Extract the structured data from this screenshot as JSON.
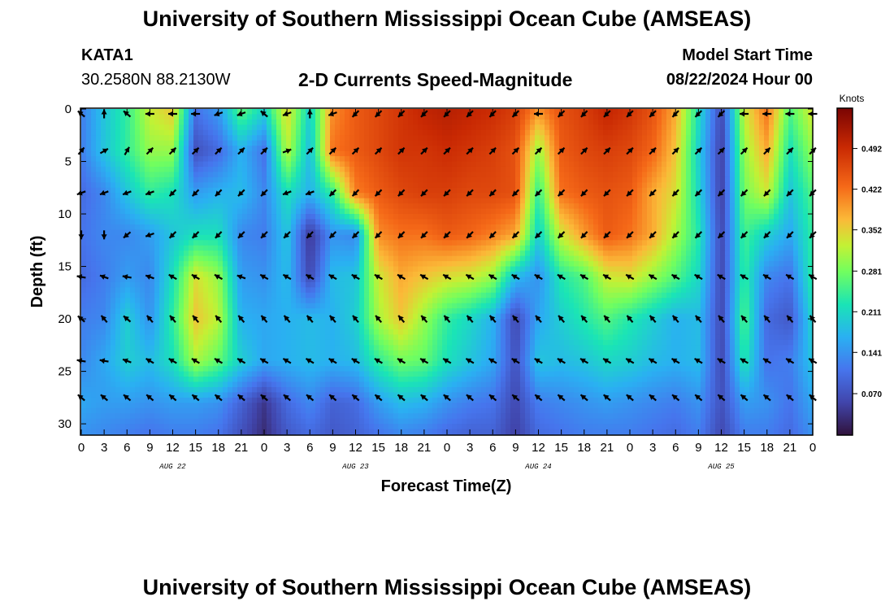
{
  "page": {
    "title": "University of Southern Mississippi Ocean Cube (AMSEAS)",
    "footer_title": "University of Southern Mississippi Ocean Cube (AMSEAS)",
    "station": "KATA1",
    "coordinates": "30.2580N  88.2130W",
    "subtitle": "2-D Currents Speed-Magnitude",
    "model_start_label": "Model Start Time",
    "model_start_value": "08/22/2024 Hour 00"
  },
  "chart_data": {
    "type": "heatmap",
    "title": "2-D Currents Speed-Magnitude",
    "xlabel": "Forecast Time(Z)",
    "ylabel": "Depth (ft)",
    "xlim": [
      0,
      96
    ],
    "ylim": [
      0,
      31
    ],
    "y_inverted": true,
    "x_tick_values": [
      0,
      3,
      6,
      9,
      12,
      15,
      18,
      21,
      24,
      27,
      30,
      33,
      36,
      39,
      42,
      45,
      48,
      51,
      54,
      57,
      60,
      63,
      66,
      69,
      72,
      75,
      78,
      81,
      84,
      87,
      90,
      93,
      96
    ],
    "x_tick_labels": [
      "0",
      "3",
      "6",
      "9",
      "12",
      "15",
      "18",
      "21",
      "0",
      "3",
      "6",
      "9",
      "12",
      "15",
      "18",
      "21",
      "0",
      "3",
      "6",
      "9",
      "12",
      "15",
      "18",
      "21",
      "0",
      "3",
      "6",
      "9",
      "12",
      "15",
      "18",
      "21",
      "0"
    ],
    "y_ticks": [
      0,
      5,
      10,
      15,
      20,
      25,
      30
    ],
    "day_labels": [
      {
        "label": "AUG 22",
        "x": 12
      },
      {
        "label": "AUG 23",
        "x": 36
      },
      {
        "label": "AUG 24",
        "x": 60
      },
      {
        "label": "AUG 25",
        "x": 84
      }
    ],
    "colorbar": {
      "unit": "Knots",
      "min": 0.0,
      "max": 0.56,
      "ticks": [
        0.07,
        0.141,
        0.211,
        0.281,
        0.352,
        0.422,
        0.492
      ],
      "tick_labels": [
        "0.070",
        "0.141",
        "0.211",
        "0.281",
        "0.352",
        "0.422",
        "0.492"
      ],
      "colormap": "jet-like"
    },
    "depth_levels": [
      0,
      4,
      8,
      12,
      16,
      20,
      24,
      27.5
    ],
    "speed_grid": {
      "x": [
        0,
        3,
        6,
        9,
        12,
        15,
        18,
        21,
        24,
        27,
        30,
        33,
        36,
        39,
        42,
        45,
        48,
        51,
        54,
        57,
        60,
        63,
        66,
        69,
        72,
        75,
        78,
        81,
        84,
        87,
        90,
        93,
        96
      ],
      "depth": [
        0,
        4,
        8,
        12,
        16,
        20,
        24,
        28,
        31
      ],
      "values": [
        [
          0.12,
          0.19,
          0.24,
          0.33,
          0.36,
          0.11,
          0.15,
          0.27,
          0.21,
          0.35,
          0.2,
          0.4,
          0.44,
          0.46,
          0.48,
          0.5,
          0.51,
          0.5,
          0.49,
          0.47,
          0.4,
          0.45,
          0.47,
          0.5,
          0.48,
          0.45,
          0.38,
          0.22,
          0.06,
          0.33,
          0.42,
          0.26,
          0.34
        ],
        [
          0.12,
          0.19,
          0.24,
          0.3,
          0.3,
          0.07,
          0.1,
          0.17,
          0.11,
          0.32,
          0.18,
          0.42,
          0.44,
          0.46,
          0.48,
          0.48,
          0.49,
          0.48,
          0.47,
          0.45,
          0.3,
          0.44,
          0.46,
          0.47,
          0.46,
          0.43,
          0.36,
          0.2,
          0.05,
          0.3,
          0.38,
          0.22,
          0.3
        ],
        [
          0.1,
          0.13,
          0.19,
          0.24,
          0.22,
          0.15,
          0.17,
          0.18,
          0.13,
          0.22,
          0.17,
          0.24,
          0.41,
          0.44,
          0.46,
          0.47,
          0.47,
          0.46,
          0.46,
          0.45,
          0.24,
          0.42,
          0.44,
          0.45,
          0.44,
          0.38,
          0.34,
          0.21,
          0.05,
          0.28,
          0.33,
          0.19,
          0.26
        ],
        [
          0.11,
          0.13,
          0.13,
          0.15,
          0.19,
          0.22,
          0.22,
          0.13,
          0.12,
          0.19,
          0.04,
          0.14,
          0.13,
          0.4,
          0.42,
          0.42,
          0.44,
          0.43,
          0.41,
          0.38,
          0.2,
          0.33,
          0.39,
          0.44,
          0.42,
          0.38,
          0.31,
          0.23,
          0.06,
          0.25,
          0.2,
          0.16,
          0.24
        ],
        [
          0.1,
          0.12,
          0.15,
          0.13,
          0.22,
          0.34,
          0.3,
          0.15,
          0.14,
          0.18,
          0.06,
          0.18,
          0.19,
          0.33,
          0.38,
          0.36,
          0.34,
          0.33,
          0.3,
          0.18,
          0.14,
          0.23,
          0.26,
          0.33,
          0.34,
          0.3,
          0.26,
          0.21,
          0.06,
          0.24,
          0.13,
          0.11,
          0.24
        ],
        [
          0.12,
          0.13,
          0.2,
          0.14,
          0.24,
          0.36,
          0.32,
          0.17,
          0.16,
          0.17,
          0.18,
          0.17,
          0.2,
          0.31,
          0.36,
          0.3,
          0.24,
          0.21,
          0.17,
          0.06,
          0.16,
          0.2,
          0.23,
          0.26,
          0.23,
          0.2,
          0.17,
          0.18,
          0.06,
          0.26,
          0.1,
          0.08,
          0.21
        ],
        [
          0.13,
          0.16,
          0.2,
          0.18,
          0.22,
          0.31,
          0.27,
          0.2,
          0.16,
          0.17,
          0.18,
          0.17,
          0.18,
          0.24,
          0.28,
          0.27,
          0.22,
          0.19,
          0.16,
          0.07,
          0.19,
          0.18,
          0.19,
          0.21,
          0.2,
          0.18,
          0.17,
          0.18,
          0.06,
          0.23,
          0.11,
          0.12,
          0.19
        ],
        [
          0.16,
          0.15,
          0.15,
          0.14,
          0.15,
          0.15,
          0.14,
          0.09,
          0.04,
          0.1,
          0.13,
          0.09,
          0.1,
          0.15,
          0.18,
          0.17,
          0.14,
          0.12,
          0.11,
          0.06,
          0.12,
          0.13,
          0.14,
          0.15,
          0.14,
          0.13,
          0.12,
          0.14,
          0.07,
          0.15,
          0.14,
          0.11,
          0.16
        ],
        [
          0.14,
          0.13,
          0.12,
          0.11,
          0.12,
          0.12,
          0.11,
          0.07,
          0.03,
          0.08,
          0.1,
          0.08,
          0.09,
          0.11,
          0.13,
          0.12,
          0.1,
          0.09,
          0.09,
          0.05,
          0.1,
          0.11,
          0.12,
          0.12,
          0.12,
          0.11,
          0.1,
          0.12,
          0.06,
          0.12,
          0.12,
          0.1,
          0.14
        ]
      ]
    },
    "vector_angles_deg": [
      [
        140,
        90,
        140,
        180,
        180,
        180,
        200,
        200,
        140,
        200,
        90,
        200,
        225,
        225,
        225,
        225,
        225,
        225,
        225,
        225,
        180,
        225,
        225,
        225,
        225,
        225,
        225,
        225,
        225,
        180,
        180,
        180,
        180
      ],
      [
        50,
        30,
        60,
        45,
        45,
        45,
        45,
        45,
        45,
        20,
        45,
        45,
        45,
        45,
        45,
        45,
        45,
        45,
        45,
        45,
        45,
        45,
        45,
        45,
        45,
        45,
        45,
        45,
        45,
        45,
        45,
        45,
        45
      ],
      [
        200,
        200,
        200,
        200,
        225,
        225,
        225,
        225,
        225,
        200,
        200,
        225,
        225,
        225,
        225,
        225,
        225,
        225,
        225,
        225,
        225,
        225,
        225,
        225,
        225,
        225,
        225,
        225,
        225,
        225,
        225,
        225,
        225
      ],
      [
        270,
        270,
        220,
        200,
        225,
        225,
        225,
        225,
        225,
        225,
        225,
        225,
        225,
        225,
        225,
        225,
        225,
        225,
        225,
        225,
        225,
        225,
        225,
        225,
        225,
        225,
        225,
        225,
        225,
        225,
        225,
        225,
        225
      ],
      [
        170,
        160,
        170,
        160,
        150,
        150,
        150,
        160,
        150,
        150,
        150,
        150,
        150,
        150,
        150,
        150,
        150,
        150,
        150,
        150,
        150,
        150,
        150,
        150,
        150,
        150,
        150,
        150,
        150,
        150,
        150,
        150,
        150
      ],
      [
        140,
        130,
        140,
        130,
        130,
        130,
        130,
        130,
        130,
        130,
        130,
        130,
        130,
        130,
        130,
        130,
        130,
        130,
        130,
        130,
        130,
        130,
        130,
        130,
        130,
        130,
        130,
        130,
        130,
        130,
        130,
        130,
        130
      ],
      [
        170,
        170,
        160,
        150,
        150,
        150,
        150,
        150,
        150,
        150,
        150,
        150,
        150,
        150,
        150,
        150,
        150,
        150,
        150,
        150,
        150,
        150,
        150,
        150,
        150,
        150,
        150,
        150,
        150,
        150,
        150,
        150,
        150
      ],
      [
        140,
        140,
        140,
        140,
        140,
        140,
        140,
        140,
        140,
        140,
        140,
        140,
        140,
        140,
        140,
        140,
        140,
        140,
        140,
        140,
        140,
        140,
        140,
        140,
        140,
        140,
        140,
        140,
        140,
        140,
        140,
        140,
        140
      ]
    ]
  }
}
